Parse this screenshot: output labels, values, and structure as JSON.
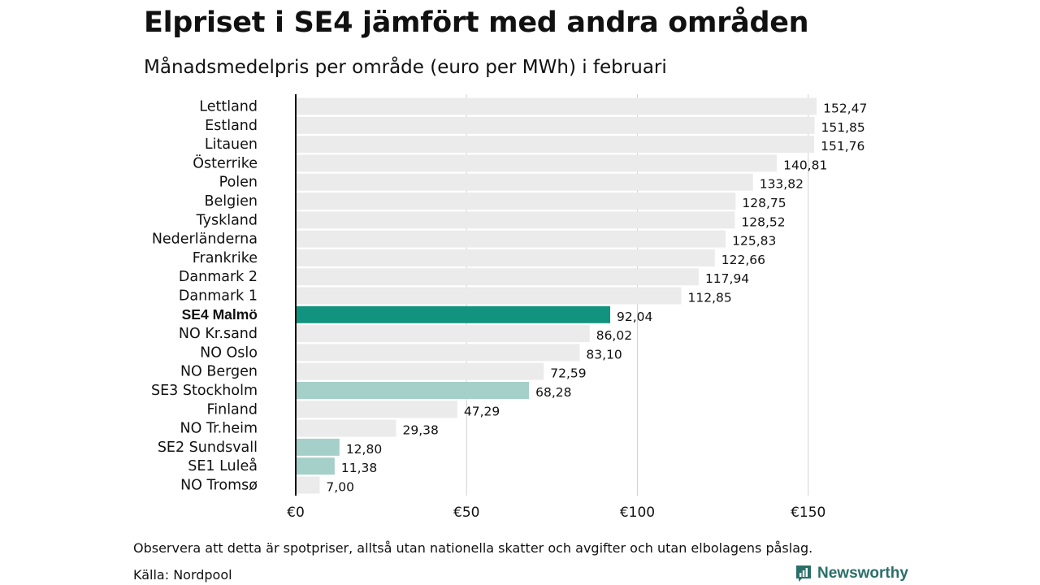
{
  "header": {
    "title": "Elpriset i SE4 jämfört med andra områden",
    "subtitle": "Månadsmedelpris per område (euro per MWh) i februari"
  },
  "footer": {
    "note": "Observera att detta är spotpriser, alltså utan nationella skatter och avgifter och utan elbolagens påslag.",
    "source": "Källa: Nordpool",
    "brand": "Newsworthy"
  },
  "colors": {
    "default": "#ebebeb",
    "highlight": "#12937f",
    "swedish": "#a5d0ca",
    "grid": "#d2d2d2",
    "baseline": "#111111"
  },
  "chart_data": {
    "type": "bar",
    "orientation": "horizontal",
    "title": "Elpriset i SE4 jämfört med andra områden",
    "subtitle": "Månadsmedelpris per område (euro per MWh) i februari",
    "xlim": [
      0,
      163
    ],
    "xticks": [
      0,
      50,
      100,
      150
    ],
    "xtick_labels": [
      "€0",
      "€50",
      "€100",
      "€150"
    ],
    "grid": "vertical",
    "categories": [
      "Lettland",
      "Estland",
      "Litauen",
      "Österrike",
      "Polen",
      "Belgien",
      "Tyskland",
      "Nederländerna",
      "Frankrike",
      "Danmark 2",
      "Danmark 1",
      "SE4 Malmö",
      "NO Kr.sand",
      "NO Oslo",
      "NO Bergen",
      "SE3 Stockholm",
      "Finland",
      "NO Tr.heim",
      "SE2 Sundsvall",
      "SE1 Luleå",
      "NO Tromsø"
    ],
    "values": [
      152.47,
      151.85,
      151.76,
      140.81,
      133.82,
      128.75,
      128.52,
      125.83,
      122.66,
      117.94,
      112.85,
      92.04,
      86.02,
      83.1,
      72.59,
      68.28,
      47.29,
      29.38,
      12.8,
      11.38,
      7.0
    ],
    "value_labels": [
      "152,47",
      "151,85",
      "151,76",
      "140,81",
      "133,82",
      "128,75",
      "128,52",
      "125,83",
      "122,66",
      "117,94",
      "112,85",
      "92,04",
      "86,02",
      "83,10",
      "72,59",
      "68,28",
      "47,29",
      "29,38",
      "12,80",
      "11,38",
      "7,00"
    ],
    "highlight": [
      "",
      "",
      "",
      "",
      "",
      "",
      "",
      "",
      "",
      "",
      "",
      "primary",
      "",
      "",
      "",
      "swedish",
      "",
      "",
      "swedish",
      "swedish",
      ""
    ]
  }
}
